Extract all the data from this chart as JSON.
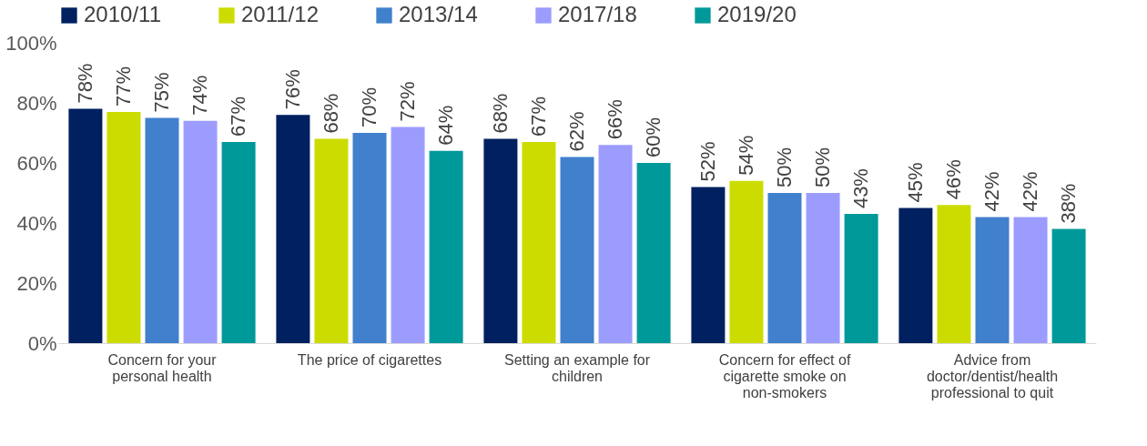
{
  "chart_data": {
    "type": "bar",
    "categories": [
      "Concern for your\npersonal health",
      "The price of cigarettes",
      "Setting an example for\nchildren",
      "Concern for effect of\ncigarette smoke on\nnon-smokers",
      "Advice from\ndoctor/dentist/health\nprofessional to quit"
    ],
    "series": [
      {
        "name": "2010/11",
        "color": "#002060",
        "values": [
          78,
          76,
          68,
          52,
          45
        ],
        "value_labels": [
          "78%",
          "76%",
          "68%",
          "52%",
          "45%"
        ]
      },
      {
        "name": "2011/12",
        "color": "#cddc00",
        "values": [
          77,
          68,
          67,
          54,
          46
        ],
        "value_labels": [
          "77%",
          "68%",
          "67%",
          "54%",
          "46%"
        ]
      },
      {
        "name": "2013/14",
        "color": "#4080cc",
        "values": [
          75,
          70,
          62,
          50,
          42
        ],
        "value_labels": [
          "75%",
          "70%",
          "62%",
          "50%",
          "42%"
        ]
      },
      {
        "name": "2017/18",
        "color": "#9c9cff",
        "values": [
          74,
          72,
          66,
          50,
          42
        ],
        "value_labels": [
          "74%",
          "72%",
          "66%",
          "50%",
          "42%"
        ]
      },
      {
        "name": "2019/20",
        "color": "#00999a",
        "values": [
          67,
          64,
          60,
          43,
          38
        ],
        "value_labels": [
          "67%",
          "64%",
          "60%",
          "43%",
          "38%"
        ]
      }
    ],
    "ylim": [
      0,
      100
    ],
    "yticks": [
      {
        "value": 0,
        "label": "0%"
      },
      {
        "value": 20,
        "label": "20%"
      },
      {
        "value": 40,
        "label": "40%"
      },
      {
        "value": 60,
        "label": "60%"
      },
      {
        "value": 80,
        "label": "80%"
      },
      {
        "value": 100,
        "label": "100%"
      }
    ],
    "grid": false,
    "legend": "top"
  }
}
